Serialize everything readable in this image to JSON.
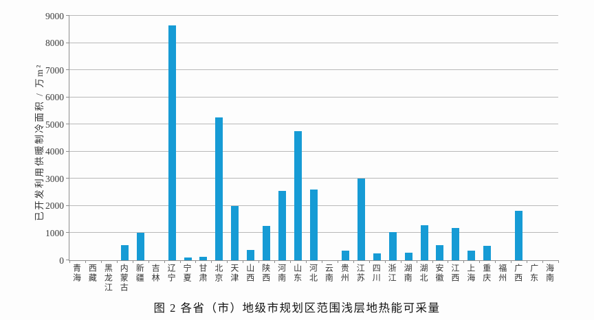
{
  "figure": {
    "caption": "图 2 各省（市）地级市规划区范围浅层地热能可采量"
  },
  "chart_data": {
    "type": "bar",
    "title": "",
    "xlabel": "",
    "ylabel": "已开发利用供暖制冷面积 / 万m²",
    "ylim": [
      0,
      9000
    ],
    "ytick_interval": 1000,
    "yticks": [
      0,
      1000,
      2000,
      3000,
      4000,
      5000,
      6000,
      7000,
      8000,
      9000
    ],
    "grid": true,
    "legend": "none",
    "bar_color": "#169bd5",
    "gridline_color": "#b8b8b8",
    "axis_color": "#8c8c8c",
    "text_color": "#333333",
    "categories": [
      "青海",
      "西藏",
      "黑龙江",
      "内蒙古",
      "新疆",
      "吉林",
      "辽宁",
      "宁夏",
      "甘肃",
      "北京",
      "天津",
      "山西",
      "陕西",
      "河南",
      "山东",
      "河北",
      "云南",
      "贵州",
      "江苏",
      "四川",
      "浙江",
      "湖南",
      "湖北",
      "安徽",
      "江西",
      "上海",
      "重庆",
      "福州",
      "广西",
      "广东",
      "海南"
    ],
    "values": [
      0,
      0,
      0,
      550,
      1000,
      0,
      8650,
      100,
      120,
      5250,
      2000,
      370,
      1270,
      2550,
      4750,
      2600,
      0,
      350,
      3000,
      260,
      1030,
      290,
      1280,
      550,
      1190,
      360,
      520,
      0,
      1830,
      0,
      0
    ]
  }
}
